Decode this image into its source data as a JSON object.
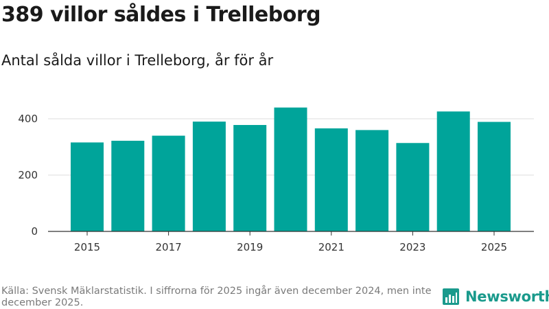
{
  "title": "389 villor såldes i Trelleborg",
  "subtitle": "Antal sålda villor i Trelleborg, år för år",
  "source": "Källa: Svensk Mäklarstatistik. I siffrorna för 2025 ingår även december 2024, men inte december 2025.",
  "brand": {
    "name": "Newsworthy",
    "icon": "newsworthy-logo-icon",
    "color": "#1a9a8c"
  },
  "colors": {
    "bar": "#00a49a",
    "grid": "#dddddd",
    "axis": "#333333"
  },
  "chart_data": {
    "type": "bar",
    "title": "Antal sålda villor i Trelleborg, år för år",
    "xlabel": "",
    "ylabel": "",
    "categories": [
      "2015",
      "2016",
      "2017",
      "2018",
      "2019",
      "2020",
      "2021",
      "2022",
      "2023",
      "2024",
      "2025"
    ],
    "values": [
      316,
      322,
      340,
      390,
      378,
      440,
      366,
      360,
      314,
      426,
      389
    ],
    "ylim": [
      0,
      480
    ],
    "yticks": [
      0,
      200,
      400
    ],
    "xticks": [
      "2015",
      "2017",
      "2019",
      "2021",
      "2023",
      "2025"
    ],
    "grid": true,
    "legend": false
  }
}
